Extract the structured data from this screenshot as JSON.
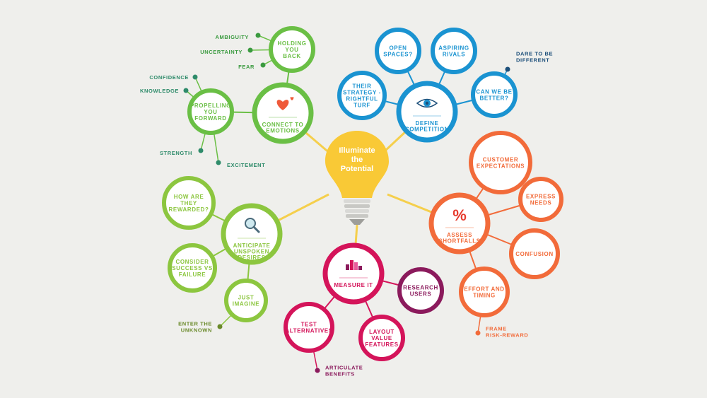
{
  "center": {
    "lines": [
      "Illuminate",
      "the",
      "Potential"
    ]
  },
  "colors": {
    "bulb": "#f9c936",
    "bulb_line": "#f5cf4c",
    "green": "#6abf45",
    "dark_green": "#3a9a3f",
    "teal": "#2e8b6a",
    "blue": "#1a93d1",
    "navy": "#1c4f7a",
    "orange": "#f26b3a",
    "magenta": "#d4145a",
    "purple": "#8b1a5c",
    "lime": "#8cc63f",
    "olive": "#6a8a2a"
  },
  "hubs": {
    "emotions": {
      "lines": [
        "CONNECT TO",
        "EMOTIONS"
      ],
      "icon": "heart-icon"
    },
    "competition": {
      "lines": [
        "DEFINE",
        "COMPETITION"
      ],
      "icon": "eye-icon"
    },
    "shortfalls": {
      "lines": [
        "ASSESS",
        "SHORTFALLS"
      ],
      "icon": "percent-icon",
      "icon_text": "%"
    },
    "measure": {
      "lines": [
        "MEASURE IT"
      ],
      "icon": "bar-chart-icon"
    },
    "desires": {
      "lines": [
        "ANTICIPATE",
        "UNSPOKEN",
        "DESIRES"
      ],
      "icon": "magnifier-icon"
    }
  },
  "nodes": {
    "holding_back": [
      "HOLDING",
      "YOU",
      "BACK"
    ],
    "propelling": [
      "PROPELLING",
      "YOU",
      "FORWARD"
    ],
    "open_spaces": [
      "OPEN",
      "SPACES?"
    ],
    "aspiring_rivals": [
      "ASPIRING",
      "RIVALS"
    ],
    "their_strategy": [
      "THEIR",
      "STRATEGY -",
      "RIGHTFUL",
      "TURF"
    ],
    "can_we_be_better": [
      "CAN WE BE",
      "BETTER?"
    ],
    "customer_expectations": [
      "CUSTOMER",
      "EXPECTATIONS"
    ],
    "express_needs": [
      "EXPRESS",
      "NEEDS"
    ],
    "confusion": [
      "CONFUSION"
    ],
    "effort_timing": [
      "EFFORT AND",
      "TIMING"
    ],
    "research_users": [
      "RESEARCH",
      "USERS"
    ],
    "test_alternatives": [
      "TEST",
      "ALTERNATIVES"
    ],
    "layout_value": [
      "LAYOUT",
      "VALUE",
      "FEATURES"
    ],
    "how_rewarded": [
      "HOW ARE",
      "THEY",
      "REWARDED?"
    ],
    "success_failure": [
      "CONSIDER",
      "SUCCESS VS",
      "FAILURE"
    ],
    "just_imagine": [
      "JUST",
      "IMAGINE"
    ]
  },
  "leaves": {
    "ambiguity": [
      "AMBIGUITY"
    ],
    "uncertainty": [
      "UNCERTAINTY"
    ],
    "fear": [
      "FEAR"
    ],
    "confidence": [
      "CONFIDENCE"
    ],
    "knowledge": [
      "KNOWLEDGE"
    ],
    "strength": [
      "STRENGTH"
    ],
    "excitement": [
      "EXCITEMENT"
    ],
    "dare_different": [
      "DARE TO BE",
      "DIFFERENT"
    ],
    "frame_risk": [
      "FRAME",
      "RISK-REWARD"
    ],
    "articulate_benefits": [
      "ARTICULATE",
      "BENEFITS"
    ],
    "enter_unknown": [
      "ENTER THE",
      "UNKNOWN"
    ]
  }
}
